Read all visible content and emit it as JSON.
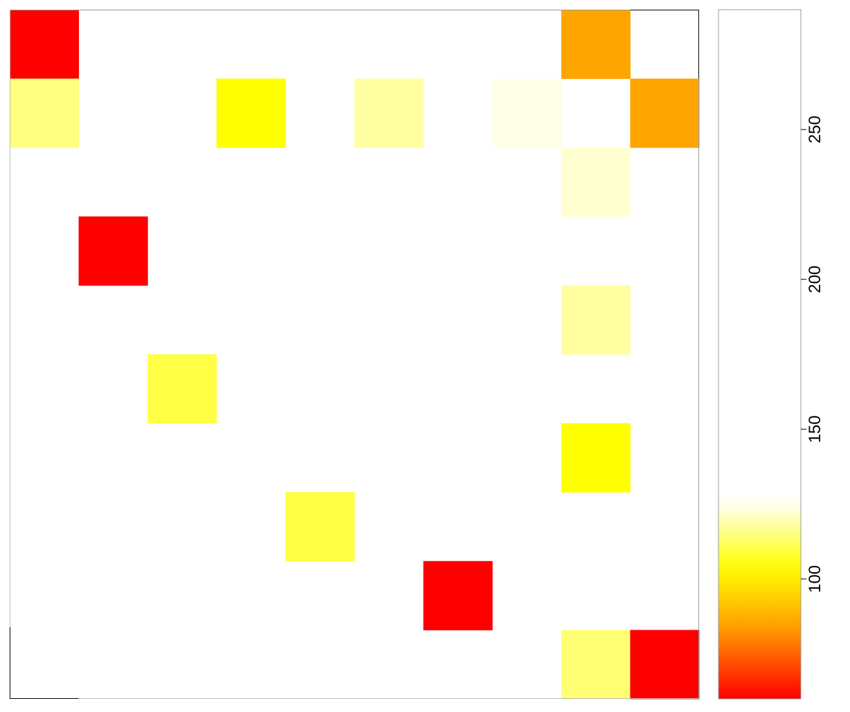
{
  "chart_data": {
    "type": "heatmap",
    "rows": 10,
    "cols": 10,
    "color_scale": [
      "#ff0000",
      "#ffa500",
      "#ffff00",
      "#ffffff"
    ],
    "colorbar_range": [
      60,
      290
    ],
    "colorbar_ticks": [
      100,
      150,
      200,
      250
    ],
    "cells": [
      {
        "row": 0,
        "col": 0,
        "value": 60
      },
      {
        "row": 0,
        "col": 8,
        "value": 85
      },
      {
        "row": 1,
        "col": 0,
        "value": 115
      },
      {
        "row": 1,
        "col": 3,
        "value": 104
      },
      {
        "row": 1,
        "col": 5,
        "value": 118
      },
      {
        "row": 1,
        "col": 7,
        "value": 124
      },
      {
        "row": 1,
        "col": 9,
        "value": 85
      },
      {
        "row": 2,
        "col": 8,
        "value": 122
      },
      {
        "row": 3,
        "col": 1,
        "value": 60
      },
      {
        "row": 3,
        "col": 3,
        "value": 126
      },
      {
        "row": 4,
        "col": 8,
        "value": 118
      },
      {
        "row": 5,
        "col": 2,
        "value": 110
      },
      {
        "row": 6,
        "col": 6,
        "value": 126
      },
      {
        "row": 6,
        "col": 8,
        "value": 104
      },
      {
        "row": 7,
        "col": 4,
        "value": 110
      },
      {
        "row": 8,
        "col": 6,
        "value": 60
      },
      {
        "row": 9,
        "col": 8,
        "value": 114
      },
      {
        "row": 9,
        "col": 9,
        "value": 60
      }
    ],
    "tick_labels": [
      "100",
      "150",
      "200",
      "250"
    ]
  }
}
